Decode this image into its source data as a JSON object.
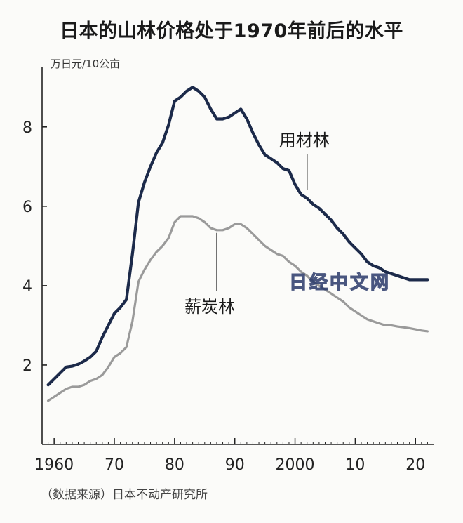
{
  "title": "日本的山林价格处于1970年前后的水平",
  "unit_label": "万日元/10公亩",
  "source": "（数据来源）日本不动产研究所",
  "watermark": "日经中文网",
  "colors": {
    "timber": "#1c2a4a",
    "charcoal": "#9a9a9a",
    "axis": "#222222",
    "background": "#fbfbf9"
  },
  "chart_data": {
    "type": "line",
    "title": "日本的山林价格处于1970年前后的水平",
    "ylabel": "万日元/10公亩",
    "xlabel": "",
    "xlim": [
      1958,
      2023
    ],
    "ylim": [
      0,
      9.5
    ],
    "x_ticks": [
      1960,
      1970,
      1980,
      1990,
      2000,
      2010,
      2020
    ],
    "x_tick_labels": [
      "1960",
      "70",
      "80",
      "90",
      "2000",
      "10",
      "20"
    ],
    "y_ticks": [
      2,
      4,
      6,
      8
    ],
    "y_tick_labels": [
      "2",
      "4",
      "6",
      "8"
    ],
    "grid": false,
    "legend": "inline labels",
    "series": [
      {
        "name": "用材林",
        "color": "#1c2a4a",
        "x": [
          1959,
          1960,
          1961,
          1962,
          1963,
          1964,
          1965,
          1966,
          1967,
          1968,
          1969,
          1970,
          1971,
          1972,
          1973,
          1974,
          1975,
          1976,
          1977,
          1978,
          1979,
          1980,
          1981,
          1982,
          1983,
          1984,
          1985,
          1986,
          1987,
          1988,
          1989,
          1990,
          1991,
          1992,
          1993,
          1994,
          1995,
          1996,
          1997,
          1998,
          1999,
          2000,
          2001,
          2002,
          2003,
          2004,
          2005,
          2006,
          2007,
          2008,
          2009,
          2010,
          2011,
          2012,
          2013,
          2014,
          2015,
          2016,
          2017,
          2018,
          2019,
          2020,
          2021,
          2022
        ],
        "values": [
          1.5,
          1.65,
          1.8,
          1.95,
          1.97,
          2.02,
          2.1,
          2.2,
          2.35,
          2.7,
          3.0,
          3.3,
          3.45,
          3.65,
          4.8,
          6.1,
          6.6,
          7.0,
          7.35,
          7.6,
          8.05,
          8.65,
          8.75,
          8.9,
          9.0,
          8.9,
          8.75,
          8.45,
          8.2,
          8.2,
          8.25,
          8.35,
          8.45,
          8.2,
          7.85,
          7.55,
          7.3,
          7.2,
          7.1,
          6.95,
          6.9,
          6.55,
          6.3,
          6.2,
          6.05,
          5.95,
          5.8,
          5.65,
          5.45,
          5.3,
          5.1,
          4.95,
          4.8,
          4.6,
          4.5,
          4.45,
          4.35,
          4.3,
          4.25,
          4.2,
          4.15,
          4.15,
          4.15,
          4.15
        ]
      },
      {
        "name": "薪炭林",
        "color": "#9a9a9a",
        "x": [
          1959,
          1960,
          1961,
          1962,
          1963,
          1964,
          1965,
          1966,
          1967,
          1968,
          1969,
          1970,
          1971,
          1972,
          1973,
          1974,
          1975,
          1976,
          1977,
          1978,
          1979,
          1980,
          1981,
          1982,
          1983,
          1984,
          1985,
          1986,
          1987,
          1988,
          1989,
          1990,
          1991,
          1992,
          1993,
          1994,
          1995,
          1996,
          1997,
          1998,
          1999,
          2000,
          2001,
          2002,
          2003,
          2004,
          2005,
          2006,
          2007,
          2008,
          2009,
          2010,
          2011,
          2012,
          2013,
          2014,
          2015,
          2016,
          2017,
          2018,
          2019,
          2020,
          2021,
          2022
        ],
        "values": [
          1.1,
          1.2,
          1.3,
          1.4,
          1.45,
          1.45,
          1.5,
          1.6,
          1.65,
          1.75,
          1.95,
          2.2,
          2.3,
          2.45,
          3.1,
          4.1,
          4.4,
          4.65,
          4.85,
          5.0,
          5.2,
          5.6,
          5.75,
          5.75,
          5.75,
          5.7,
          5.6,
          5.45,
          5.4,
          5.4,
          5.45,
          5.55,
          5.55,
          5.45,
          5.3,
          5.15,
          5.0,
          4.9,
          4.8,
          4.75,
          4.6,
          4.5,
          4.35,
          4.25,
          4.1,
          4.0,
          3.9,
          3.8,
          3.7,
          3.6,
          3.45,
          3.35,
          3.25,
          3.15,
          3.1,
          3.05,
          3.0,
          3.0,
          2.97,
          2.95,
          2.93,
          2.9,
          2.87,
          2.85
        ]
      }
    ],
    "annotations": [
      {
        "text": "用材林",
        "points_to": {
          "x": 2002,
          "y": 6.3
        }
      },
      {
        "text": "薪炭林",
        "points_to": {
          "x": 1987,
          "y": 5.4
        }
      }
    ]
  }
}
